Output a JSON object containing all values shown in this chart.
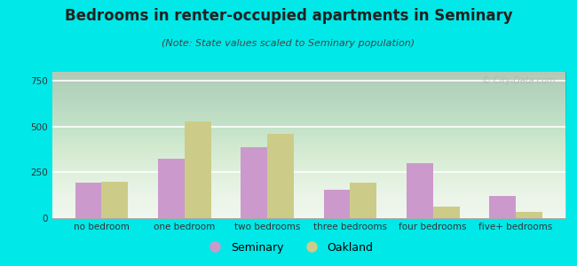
{
  "title": "Bedrooms in renter-occupied apartments in Seminary",
  "subtitle": "(Note: State values scaled to Seminary population)",
  "categories": [
    "no bedroom",
    "one bedroom",
    "two bedrooms",
    "three bedrooms",
    "four bedrooms",
    "five+ bedrooms"
  ],
  "seminary_values": [
    195,
    325,
    390,
    155,
    300,
    120
  ],
  "oakland_values": [
    200,
    530,
    460,
    195,
    65,
    35
  ],
  "seminary_color": "#cc99cc",
  "oakland_color": "#cccc88",
  "background_outer": "#00e8e8",
  "plot_bg_top": "#f5faf5",
  "plot_bg_bottom": "#d8edda",
  "ylim": [
    0,
    800
  ],
  "yticks": [
    0,
    250,
    500,
    750
  ],
  "bar_width": 0.32,
  "legend_labels": [
    "Seminary",
    "Oakland"
  ],
  "title_fontsize": 12,
  "subtitle_fontsize": 8,
  "tick_fontsize": 7.5
}
